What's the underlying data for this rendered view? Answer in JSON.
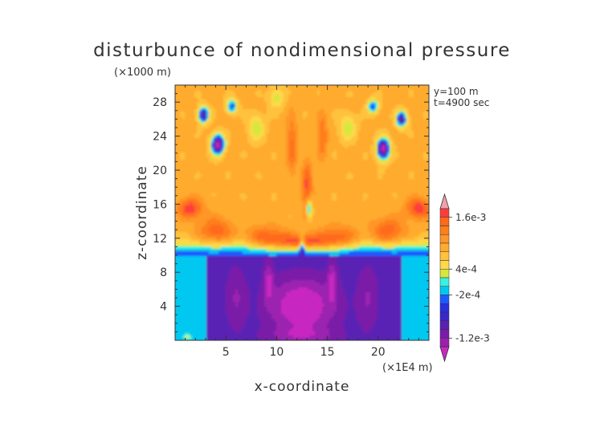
{
  "chart_data": {
    "type": "heatmap",
    "title": "disturbunce of nondimensional pressure",
    "xlabel": "x-coordinate",
    "ylabel": "z-coordinate",
    "x_unit_label": "(×1E4 m)",
    "y_unit_label": "(×1000 m)",
    "annotations": [
      "y=100 m",
      "t=4900 sec"
    ],
    "xlim": [
      0,
      25
    ],
    "ylim": [
      0,
      30
    ],
    "x_ticks": [
      5,
      10,
      15,
      20
    ],
    "y_ticks": [
      4,
      8,
      12,
      16,
      20,
      24,
      28
    ],
    "colorbar": {
      "labels": [
        {
          "text": "1.6e-3",
          "value": 0.0016
        },
        {
          "text": "4e-4",
          "value": 0.0004
        },
        {
          "text": "-2e-4",
          "value": -0.0002
        },
        {
          "text": "-1.2e-3",
          "value": -0.0012
        }
      ],
      "levels": [
        0.0018,
        0.0016,
        0.0014,
        0.0012,
        0.001,
        0.0008,
        0.0006,
        0.0004,
        0.0002,
        0.0,
        -0.0002,
        -0.0004,
        -0.0006,
        -0.0008,
        -0.001,
        -0.0012,
        -0.0014,
        -0.0016
      ],
      "colors": [
        "#f2a0a8",
        "#ff3c3c",
        "#ff6a1a",
        "#ff7e1e",
        "#ff9628",
        "#ffab2e",
        "#ffc23c",
        "#ffd84a",
        "#d6e83c",
        "#3cf0e0",
        "#00c8f0",
        "#1e5aff",
        "#2830e0",
        "#3a28c8",
        "#5a20b4",
        "#7a1ca8",
        "#9c20b0",
        "#c828c0"
      ]
    }
  }
}
